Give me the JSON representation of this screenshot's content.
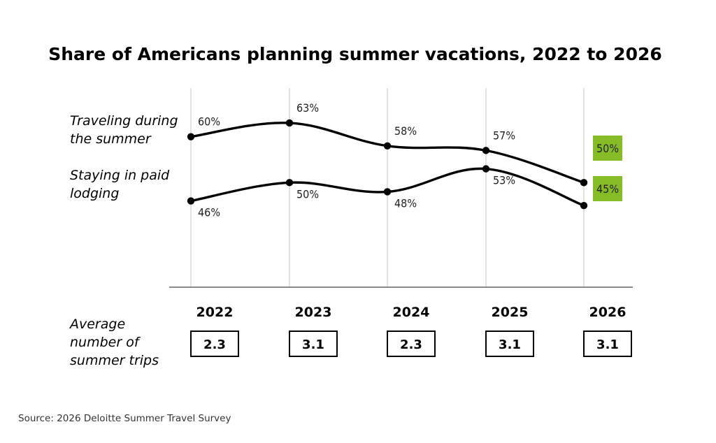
{
  "chart_data": {
    "type": "line",
    "title": "Share of Americans planning summer vacations, 2022 to 2026",
    "categories": [
      "2022",
      "2023",
      "2024",
      "2025",
      "2026"
    ],
    "series": [
      {
        "name": "Traveling during the summer",
        "name_lines": [
          "Traveling during",
          "the summer"
        ],
        "values": [
          60,
          63,
          58,
          57,
          50
        ],
        "labels": [
          "60%",
          "63%",
          "58%",
          "57%",
          "50%"
        ]
      },
      {
        "name": "Staying in paid lodging",
        "name_lines": [
          "Staying in paid",
          "lodging"
        ],
        "values": [
          46,
          50,
          48,
          53,
          45
        ],
        "labels": [
          "46%",
          "50%",
          "48%",
          "53%",
          "45%"
        ]
      }
    ],
    "ylim": [
      0,
      100
    ],
    "grid": "vertical",
    "highlight_color": "#86bc25",
    "line_color": "#000000",
    "trips": {
      "label_lines": [
        "Average",
        "number of",
        "summer trips"
      ],
      "values": [
        "2.3",
        "3.1",
        "2.3",
        "3.1",
        "3.1"
      ]
    },
    "source": "Source: 2026 Deloitte Summer Travel Survey"
  }
}
